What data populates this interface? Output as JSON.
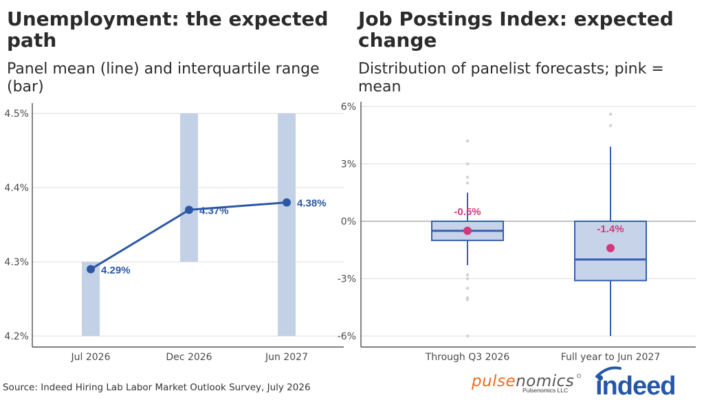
{
  "left_panel": {
    "title": "Unemployment: the expected path",
    "subtitle": "Panel mean (line) and interquartile range (bar)"
  },
  "right_panel": {
    "title": "Job Postings Index: expected change",
    "subtitle": "Distribution of panelist forecasts; pink = mean"
  },
  "footer": {
    "source": "Source: Indeed Hiring Lab Labor Market Outlook Survey, July 2026",
    "pulsenomics_logo": "pulsenomics",
    "pulsenomics_sub": "Pulsenomics LLC",
    "indeed_logo": "indeed"
  },
  "colors": {
    "line": "#2b57a5",
    "bar": "#c3d1e6",
    "box_fill": "#c6d3e8",
    "box_stroke": "#3460b0",
    "mean_pink": "#d1397c",
    "outlier": "#d0d0d0",
    "pulse_orange": "#f26b21",
    "indeed_blue": "#2557a7"
  },
  "chart_data": [
    {
      "type": "line",
      "categories": [
        "Jul 2026",
        "Dec 2026",
        "Jun 2027"
      ],
      "series": [
        {
          "values": [
            4.29,
            4.37,
            4.38
          ]
        }
      ],
      "iqr_bars": [
        {
          "low": 4.2,
          "high": 4.3
        },
        {
          "low": 4.3,
          "high": 4.5
        },
        {
          "low": 4.2,
          "high": 4.5
        }
      ],
      "value_labels": [
        "4.29%",
        "4.37%",
        "4.38%"
      ],
      "yticks": [
        4.2,
        4.3,
        4.4,
        4.5
      ],
      "ytick_labels": [
        "4.2%",
        "4.3%",
        "4.4%",
        "4.5%"
      ],
      "ylim": [
        4.2,
        4.5
      ],
      "grid": true
    },
    {
      "type": "box",
      "categories": [
        "Through Q3 2026",
        "Full year to Jun 2027"
      ],
      "boxes": [
        {
          "whisker_low": -2.3,
          "q1": -1.0,
          "median": -0.5,
          "q3": 0.0,
          "whisker_high": 1.5,
          "mean": -0.5,
          "mean_label": "-0.5%",
          "outliers": [
            2.0,
            2.3,
            3.0,
            4.2,
            -2.8,
            -3.0,
            -3.5,
            -4.0,
            -4.1,
            -6.0
          ]
        },
        {
          "whisker_low": -6.0,
          "q1": -3.1,
          "median": -2.0,
          "q3": 0.0,
          "whisker_high": 3.9,
          "mean": -1.4,
          "mean_label": "-1.4%",
          "outliers": [
            5.0,
            5.6
          ]
        }
      ],
      "yticks": [
        -6,
        -3,
        0,
        3,
        6
      ],
      "ytick_labels": [
        "-6%",
        "-3%",
        "0%",
        "3%",
        "6%"
      ],
      "ylim": [
        -6,
        6
      ],
      "grid": true,
      "zero_line": true
    }
  ]
}
